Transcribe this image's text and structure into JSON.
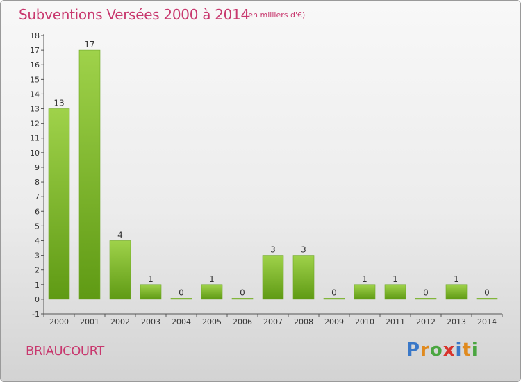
{
  "header": {
    "title": "Subventions Versées 2000 à 2014",
    "unit": "(en milliers d'€)"
  },
  "footer": {
    "place": "BRIAUCOURT",
    "logo": {
      "letters": [
        "P",
        "r",
        "o",
        "x",
        "i",
        "t",
        "i"
      ],
      "colors": [
        "#3a78c8",
        "#e08a1e",
        "#4aa640",
        "#d8342c",
        "#3a78c8",
        "#e08a1e",
        "#4aa640"
      ]
    }
  },
  "chart_data": {
    "type": "bar",
    "title": "Subventions Versées 2000 à 2014",
    "xlabel": "",
    "ylabel": "",
    "categories": [
      "2000",
      "2001",
      "2002",
      "2003",
      "2004",
      "2005",
      "2006",
      "2007",
      "2008",
      "2009",
      "2010",
      "2011",
      "2012",
      "2013",
      "2014"
    ],
    "values": [
      13,
      17,
      4,
      1,
      0,
      1,
      0,
      3,
      3,
      0,
      1,
      1,
      0,
      1,
      0
    ],
    "value_labels": [
      "13",
      "17",
      "4",
      "1",
      "0",
      "1",
      "0",
      "3",
      "3",
      "0",
      "1",
      "1",
      "0",
      "1",
      "0"
    ],
    "yticks": [
      "-1",
      "0",
      "1",
      "2",
      "3",
      "4",
      "5",
      "6",
      "7",
      "8",
      "9",
      "10",
      "11",
      "12",
      "13",
      "14",
      "15",
      "16",
      "17",
      "18"
    ],
    "ylim": [
      -1,
      18
    ],
    "grid": false,
    "colors": {
      "bar_top": "#9fd24a",
      "bar_bottom": "#5f9a14",
      "axis": "#555555"
    }
  }
}
